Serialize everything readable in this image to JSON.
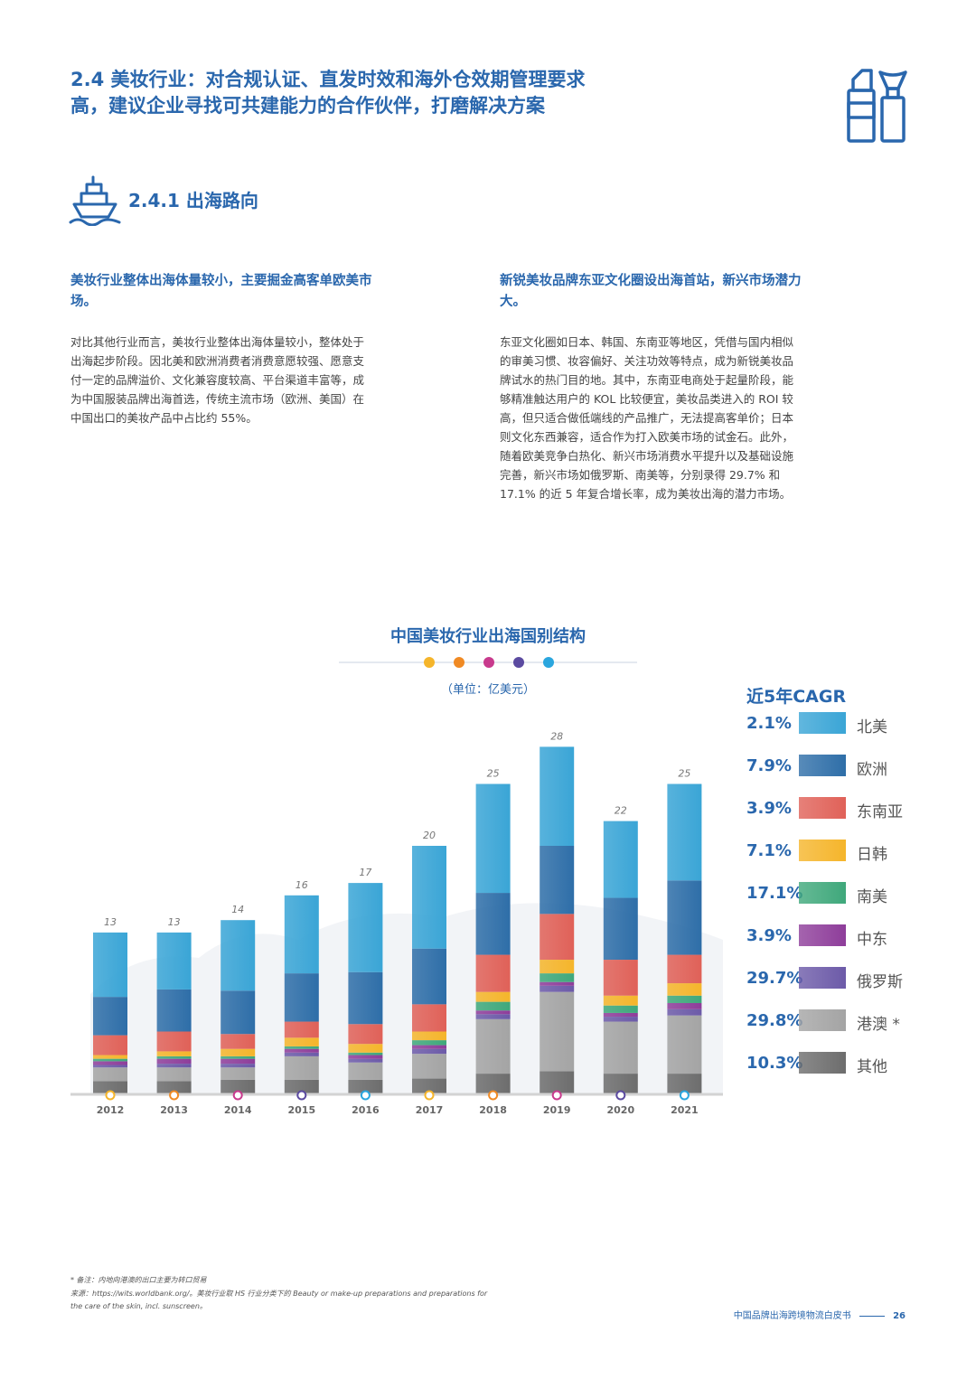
{
  "section": {
    "title": "2.4 美妆行业：对合规认证、直发时效和海外仓效期管理要求高，建议企业寻找可共建能力的合作伙伴，打磨解决方案",
    "subsection_title": "2.4.1 出海路向"
  },
  "left_col": {
    "heading": "美妆行业整体出海体量较小，主要掘金高客单欧美市场。",
    "body": "对比其他行业而言，美妆行业整体出海体量较小，整体处于出海起步阶段。因北美和欧洲消费者消费意愿较强、愿意支付一定的品牌溢价、文化兼容度较高、平台渠道丰富等，成为中国服装品牌出海首选，传统主流市场（欧洲、美国）在中国出口的美妆产品中占比约 55%。"
  },
  "right_col": {
    "heading": "新锐美妆品牌东亚文化圈设出海首站，新兴市场潜力大。",
    "body": "东亚文化圈如日本、韩国、东南亚等地区，凭借与国内相似的审美习惯、妆容偏好、关注功效等特点，成为新锐美妆品牌试水的热门目的地。其中，东南亚电商处于起量阶段，能够精准触达用户的 KOL 比较便宜，美妆品类进入的 ROI 较高，但只适合做低端线的产品推广，无法提高客单价；日本则文化东西兼容，适合作为打入欧美市场的试金石。此外，随着欧美竞争白热化、新兴市场消费水平提升以及基础设施完善，新兴市场如俄罗斯、南美等，分别录得 29.7% 和 17.1% 的近 5 年复合增长率，成为美妆出海的潜力市场。"
  },
  "chart_data": {
    "type": "bar",
    "stacked": true,
    "title": "中国美妆行业出海国别结构",
    "unit": "（单位：亿美元）",
    "categories": [
      "2012",
      "2013",
      "2014",
      "2015",
      "2016",
      "2017",
      "2018",
      "2019",
      "2020",
      "2021"
    ],
    "totals": [
      13,
      13,
      14,
      16,
      17,
      20,
      25,
      28,
      22,
      25
    ],
    "ylim": [
      0,
      30
    ],
    "legend_title": "近5年CAGR",
    "series": [
      {
        "name": "其他",
        "cagr": "10.3%",
        "color": "#6d6d6d",
        "values": [
          1.0,
          1.0,
          1.1,
          1.1,
          1.1,
          1.2,
          1.6,
          1.8,
          1.6,
          1.6
        ]
      },
      {
        "name": "港澳 *",
        "cagr": "29.8%",
        "color": "#a4a4a4",
        "values": [
          1.1,
          1.1,
          1.0,
          1.9,
          1.4,
          2.0,
          4.4,
          6.4,
          4.2,
          4.7
        ]
      },
      {
        "name": "俄罗斯",
        "cagr": "29.7%",
        "color": "#6c5aa8",
        "values": [
          0.2,
          0.3,
          0.3,
          0.3,
          0.3,
          0.4,
          0.4,
          0.5,
          0.4,
          0.5
        ]
      },
      {
        "name": "中东",
        "cagr": "3.9%",
        "color": "#8e3d9a",
        "values": [
          0.3,
          0.4,
          0.4,
          0.3,
          0.3,
          0.3,
          0.3,
          0.3,
          0.3,
          0.5
        ]
      },
      {
        "name": "南美",
        "cagr": "17.1%",
        "color": "#3fa87b",
        "values": [
          0.2,
          0.2,
          0.2,
          0.2,
          0.2,
          0.4,
          0.7,
          0.7,
          0.6,
          0.6
        ]
      },
      {
        "name": "日韩",
        "cagr": "7.1%",
        "color": "#f5b52b",
        "values": [
          0.3,
          0.4,
          0.6,
          0.7,
          0.7,
          0.7,
          0.8,
          1.1,
          0.8,
          1.0
        ]
      },
      {
        "name": "东南亚",
        "cagr": "3.9%",
        "color": "#e06158",
        "values": [
          1.6,
          1.6,
          1.2,
          1.3,
          1.6,
          2.2,
          3.0,
          3.7,
          2.9,
          2.3
        ]
      },
      {
        "name": "欧洲",
        "cagr": "7.9%",
        "color": "#2e6ea8",
        "values": [
          3.1,
          3.4,
          3.5,
          3.9,
          4.2,
          4.5,
          5.0,
          5.5,
          5.0,
          6.0
        ]
      },
      {
        "name": "北美",
        "cagr": "2.1%",
        "color": "#3aa5d6",
        "values": [
          5.2,
          4.6,
          5.7,
          6.3,
          7.2,
          8.3,
          8.8,
          8.0,
          6.2,
          7.8
        ]
      }
    ]
  },
  "notes": {
    "line1": "* 备注：内地向港澳的出口主要为转口贸易",
    "line2": "来源：https://wits.worldbank.org/。美妆行业取 HS 行业分类下的 Beauty or make-up preparations and preparations for",
    "line3": "the care of the skin, incl. sunscreen。"
  },
  "footer": {
    "text": "中国品牌出海跨境物流白皮书",
    "page": "26"
  },
  "colors": {
    "brand_blue": "#2a67ad",
    "title_dots": [
      "#f5b52b",
      "#f08a24",
      "#c83a8d",
      "#5b4aa0",
      "#2aa6de"
    ]
  },
  "icons": {
    "header": "cosmetics-icon",
    "subsection": "ship-icon"
  }
}
